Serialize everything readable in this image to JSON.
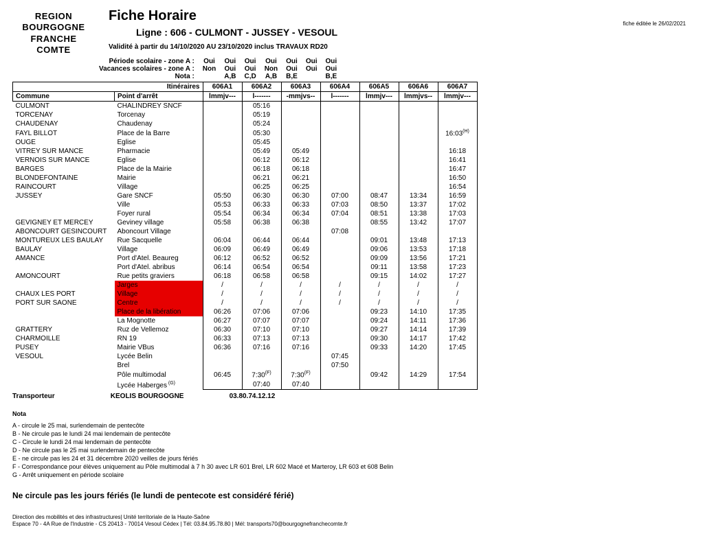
{
  "header": {
    "logo_lines": [
      "REGION",
      "BOURGOGNE",
      "FRANCHE",
      "COMTE"
    ],
    "title": "Fiche Horaire",
    "ligne_label": "Ligne :  606 - CULMONT - JUSSEY - VESOUL",
    "edit_date": "fiche éditée le 26/02/2021",
    "validity": "Validité à partir du 14/10/2020 AU 23/10/2020 inclus  TRAVAUX RD20"
  },
  "meta": {
    "rows": [
      {
        "label": "Période scolaire - zone A :",
        "vals": [
          "Oui",
          "Oui",
          "Oui",
          "Oui",
          "Oui",
          "Oui",
          "Oui"
        ]
      },
      {
        "label": "Vacances scolaires - zone A :",
        "vals": [
          "Non",
          "Oui",
          "Oui",
          "Non",
          "Oui",
          "Oui",
          "Oui"
        ]
      },
      {
        "label": "Nota :",
        "vals": [
          "",
          "A,B",
          "C,D",
          "A,B",
          "B,E",
          "",
          "B,E"
        ]
      }
    ]
  },
  "columns": {
    "itin_label": "Itinéraires",
    "commune": "Commune",
    "point": "Point d'arrêt",
    "codes": [
      "606A1",
      "606A2",
      "606A3",
      "606A4",
      "606A5",
      "606A6",
      "606A7"
    ],
    "days": [
      "lmmjv---",
      "l-------",
      "-mmjvs--",
      "l-------",
      "lmmjv---",
      "lmmjvs--",
      "lmmjv---"
    ]
  },
  "rows": [
    {
      "commune": "CULMONT",
      "stop": "CHALINDREY  SNCF",
      "t": [
        "",
        "05:16",
        "",
        "",
        "",
        "",
        ""
      ]
    },
    {
      "commune": "TORCENAY",
      "stop": "Torcenay",
      "t": [
        "",
        "05:19",
        "",
        "",
        "",
        "",
        ""
      ]
    },
    {
      "commune": "CHAUDENAY",
      "stop": "Chaudenay",
      "t": [
        "",
        "05:24",
        "",
        "",
        "",
        "",
        ""
      ]
    },
    {
      "commune": "FAYL BILLOT",
      "stop": "Place de la Barre",
      "t": [
        "",
        "05:30",
        "",
        "",
        "",
        "",
        "16:03"
      ],
      "sup7": "(H)"
    },
    {
      "commune": "OUGE",
      "stop": "Eglise",
      "t": [
        "",
        "05:45",
        "",
        "",
        "",
        "",
        ""
      ]
    },
    {
      "commune": "VITREY SUR MANCE",
      "stop": "Pharmacie",
      "t": [
        "",
        "05:49",
        "05:49",
        "",
        "",
        "",
        "16:18"
      ]
    },
    {
      "commune": "VERNOIS SUR MANCE",
      "stop": "Eglise",
      "t": [
        "",
        "06:12",
        "06:12",
        "",
        "",
        "",
        "16:41"
      ]
    },
    {
      "commune": "BARGES",
      "stop": "Place de la Mairie",
      "t": [
        "",
        "06:18",
        "06:18",
        "",
        "",
        "",
        "16:47"
      ]
    },
    {
      "commune": "BLONDEFONTAINE",
      "stop": "Mairie",
      "t": [
        "",
        "06:21",
        "06:21",
        "",
        "",
        "",
        "16:50"
      ]
    },
    {
      "commune": "RAINCOURT",
      "stop": "Village",
      "t": [
        "",
        "06:25",
        "06:25",
        "",
        "",
        "",
        "16:54"
      ]
    },
    {
      "commune": "JUSSEY",
      "stop": "Gare SNCF",
      "t": [
        "05:50",
        "06:30",
        "06:30",
        "07:00",
        "08:47",
        "13:34",
        "16:59"
      ]
    },
    {
      "commune": "",
      "stop": "Ville",
      "t": [
        "05:53",
        "06:33",
        "06:33",
        "07:03",
        "08:50",
        "13:37",
        "17:02"
      ]
    },
    {
      "commune": "",
      "stop": "Foyer rural",
      "t": [
        "05:54",
        "06:34",
        "06:34",
        "07:04",
        "08:51",
        "13:38",
        "17:03"
      ]
    },
    {
      "commune": "GEVIGNEY ET MERCEY",
      "stop": "Geviney village",
      "t": [
        "05:58",
        "06:38",
        "06:38",
        "",
        "08:55",
        "13:42",
        "17:07"
      ]
    },
    {
      "commune": "ABONCOURT GESINCOURT",
      "stop": "Aboncourt Village",
      "t": [
        "",
        "",
        "",
        "07:08",
        "",
        "",
        ""
      ]
    },
    {
      "commune": "MONTUREUX LES BAULAY",
      "stop": "Rue Sacquelle",
      "t": [
        "06:04",
        "06:44",
        "06:44",
        "",
        "09:01",
        "13:48",
        "17:13"
      ]
    },
    {
      "commune": "BAULAY",
      "stop": "Village",
      "t": [
        "06:09",
        "06:49",
        "06:49",
        "",
        "09:06",
        "13:53",
        "17:18"
      ]
    },
    {
      "commune": "AMANCE",
      "stop": "Port d'Atel. Beaureg",
      "t": [
        "06:12",
        "06:52",
        "06:52",
        "",
        "09:09",
        "13:56",
        "17:21"
      ]
    },
    {
      "commune": "",
      "stop": "Port d'Atel. abribus",
      "t": [
        "06:14",
        "06:54",
        "06:54",
        "",
        "09:11",
        "13:58",
        "17:23"
      ]
    },
    {
      "commune": "AMONCOURT",
      "stop": "Rue petits graviers",
      "t": [
        "06:18",
        "06:58",
        "06:58",
        "",
        "09:15",
        "14:02",
        "17:27"
      ]
    },
    {
      "commune": "",
      "stop": "Jarges",
      "red": true,
      "t": [
        "/",
        "/",
        "/",
        "/",
        "/",
        "/",
        "/"
      ]
    },
    {
      "commune": "CHAUX LES PORT",
      "stop": "Village",
      "red": true,
      "t": [
        "/",
        "/",
        "/",
        "/",
        "/",
        "/",
        "/"
      ]
    },
    {
      "commune": "PORT SUR SAONE",
      "stop": "Centre",
      "red": true,
      "t": [
        "/",
        "/",
        "/",
        "/",
        "/",
        "/",
        "/"
      ]
    },
    {
      "commune": "",
      "stop": "Place de la libération",
      "red": true,
      "t": [
        "06:26",
        "07:06",
        "07:06",
        "",
        "09:23",
        "14:10",
        "17:35"
      ]
    },
    {
      "commune": "",
      "stop": "La Mognotte",
      "t": [
        "06:27",
        "07:07",
        "07:07",
        "",
        "09:24",
        "14:11",
        "17:36"
      ]
    },
    {
      "commune": "GRATTERY",
      "stop": "Ruz de Vellemoz",
      "t": [
        "06:30",
        "07:10",
        "07:10",
        "",
        "09:27",
        "14:14",
        "17:39"
      ]
    },
    {
      "commune": "CHARMOILLE",
      "stop": "RN 19",
      "t": [
        "06:33",
        "07:13",
        "07:13",
        "",
        "09:30",
        "14:17",
        "17:42"
      ]
    },
    {
      "commune": "PUSEY",
      "stop": "Mairie VBus",
      "t": [
        "06:36",
        "07:16",
        "07:16",
        "",
        "09:33",
        "14:20",
        "17:45"
      ]
    },
    {
      "commune": "VESOUL",
      "stop": "Lycée Belin",
      "t": [
        "",
        "",
        "",
        "07:45",
        "",
        "",
        ""
      ]
    },
    {
      "commune": "",
      "stop": "Brel",
      "t": [
        "",
        "",
        "",
        "07:50",
        "",
        "",
        ""
      ]
    },
    {
      "commune": "",
      "stop": "Pôle multimodal",
      "t": [
        "06:45",
        "7:30",
        "7:30",
        "",
        "09:42",
        "14:29",
        "17:54"
      ],
      "sup2": "(F)",
      "sup3": "(F)"
    },
    {
      "commune": "",
      "stop": "Lycée Haberges",
      "stopSup": "(G)",
      "t": [
        "",
        "07:40",
        "07:40",
        "",
        "",
        "",
        ""
      ]
    }
  ],
  "transporter": {
    "label": "Transporteur",
    "name": "KEOLIS BOURGOGNE",
    "phone": "03.80.74.12.12"
  },
  "nota": {
    "title": "Nota",
    "items": [
      "A - circule le 25 mai, surlendemain de pentecôte",
      "B - Ne circule pas le lundi 24 mai lendemain de pentecôte",
      "C - Circule le lundi 24 mai lendemain de pentecôte",
      "D - Ne circule pas le 25 mai surlendemain de pentecôte",
      "E - ne circule pas les 24 et 31 décembre 2020 veilles de jours fériés",
      "F - Correspondance pour élèves uniquement au Pôle multimodal à 7 h 30 avec LR 601 Brel, LR 602 Macé et Marteroy, LR 603 et 608 Belin",
      "G - Arrêt uniquement en période scolaire"
    ]
  },
  "big_note": "Ne circule pas les jours fériés (le lundi de pentecote est considéré férié)",
  "footer": {
    "l1": "Direction des mobilités et des infrastructures| Unité territoriale de la Haute-Saône",
    "l2": "Espace 70 - 4A Rue de l'Industrie - CS 20413 - 70014 Vesoul Cédex | Tél: 03.84.95.78.80 | Mél: transports70@bourgognefranchecomte.fr"
  }
}
